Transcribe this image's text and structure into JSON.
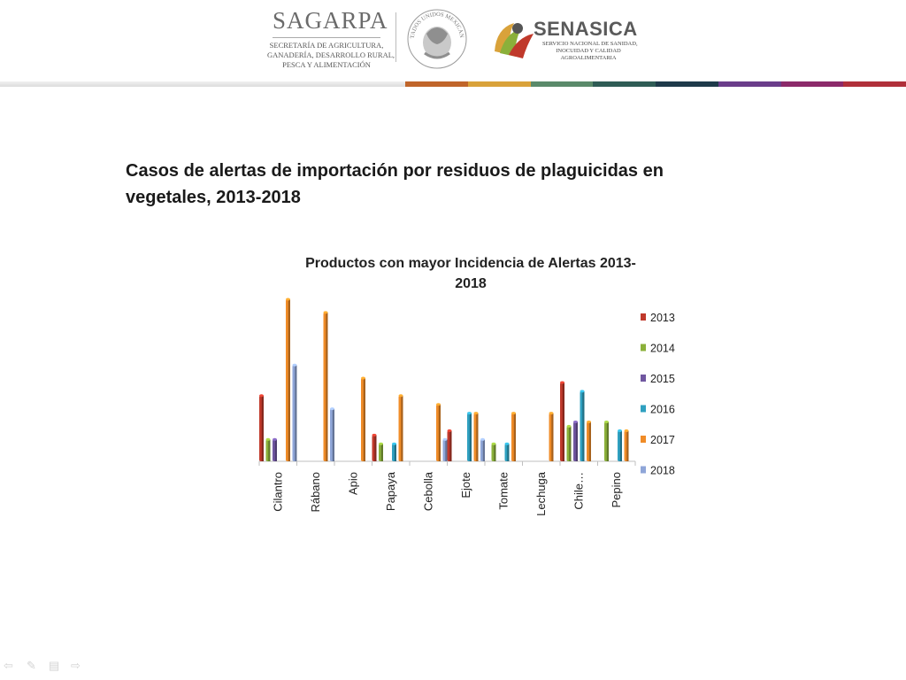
{
  "header": {
    "sagarpa": {
      "name": "SAGARPA",
      "subtitle_lines": [
        "SECRETARÍA DE AGRICULTURA,",
        "GANADERÍA, DESARROLLO RURAL,",
        "PESCA Y ALIMENTACIÓN"
      ]
    },
    "seal": {
      "text": "ESTADOS UNIDOS MEXICANOS"
    },
    "senasica": {
      "name": "SENASICA",
      "subtitle_lines": [
        "SERVICIO NACIONAL DE SANIDAD,",
        "INOCUIDAD Y CALIDAD",
        "AGROALIMENTARIA"
      ]
    },
    "stripe_colors": [
      "#c0652a",
      "#d9a23a",
      "#5a8a6a",
      "#2f5c55",
      "#1e3a4a",
      "#6a3d8a",
      "#8c2a6a",
      "#b0303a"
    ]
  },
  "slide": {
    "title": "Casos de alertas de importación por residuos de plaguicidas en vegetales, 2013-2018"
  },
  "chart_data": {
    "type": "bar",
    "title_lines": [
      "Productos con mayor Incidencia de Alertas 2013-",
      "2018"
    ],
    "categories": [
      "Cilantro",
      "Rábano",
      "Apio",
      "Papaya",
      "Cebolla",
      "Ejote",
      "Tomate",
      "Lechuga",
      "Chile…",
      "Pepino"
    ],
    "series": [
      {
        "name": "2013",
        "color": "#c0392b",
        "values": [
          15,
          0,
          0,
          6,
          0,
          7,
          0,
          0,
          18,
          0
        ]
      },
      {
        "name": "2014",
        "color": "#8bb03a",
        "values": [
          5,
          0,
          0,
          4,
          0,
          0,
          4,
          0,
          8,
          9
        ]
      },
      {
        "name": "2015",
        "color": "#7057a0",
        "values": [
          5,
          0,
          0,
          0,
          0,
          0,
          0,
          0,
          9,
          0
        ]
      },
      {
        "name": "2016",
        "color": "#2fa0c0",
        "values": [
          0,
          0,
          0,
          4,
          0,
          11,
          4,
          0,
          16,
          7
        ]
      },
      {
        "name": "2017",
        "color": "#f08c28",
        "values": [
          37,
          34,
          19,
          15,
          13,
          11,
          11,
          11,
          9,
          7
        ]
      },
      {
        "name": "2018",
        "color": "#8fa6d8",
        "values": [
          22,
          12,
          0,
          0,
          5,
          5,
          0,
          0,
          0,
          0
        ]
      }
    ],
    "ylim": [
      0,
      37
    ],
    "legend_position": "right",
    "grid": false
  },
  "nav": {
    "icons": [
      "arrow-left-icon",
      "pen-icon",
      "menu-icon",
      "arrow-right-icon"
    ],
    "glyphs": [
      "⇦",
      "✎",
      "▤",
      "⇨"
    ]
  }
}
